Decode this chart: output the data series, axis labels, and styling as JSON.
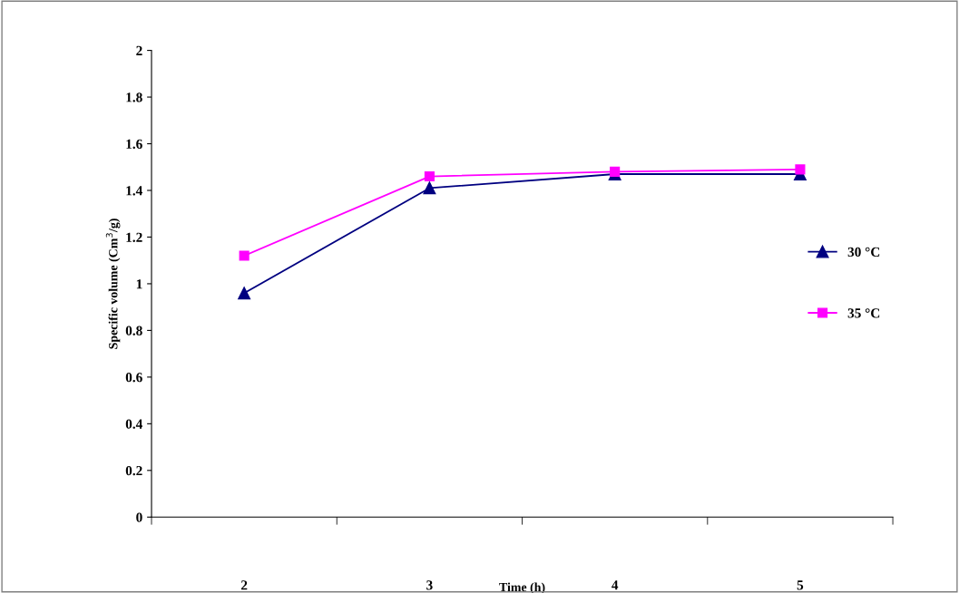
{
  "chart_data": {
    "type": "line",
    "xlabel": "Time (h)",
    "ylabel": "Specific volume (Cm$^{3}$/g)",
    "categories": [
      "2",
      "3",
      "4",
      "5"
    ],
    "series": [
      {
        "name": "30 °C",
        "color": "#000080",
        "marker": "triangle",
        "values": [
          0.96,
          1.41,
          1.47,
          1.47
        ]
      },
      {
        "name": "35 °C",
        "color": "#ff00ff",
        "marker": "square",
        "values": [
          1.12,
          1.46,
          1.48,
          1.49
        ]
      }
    ],
    "ylim": [
      0,
      2
    ],
    "yticks": [
      0,
      0.2,
      0.4,
      0.6,
      0.8,
      1,
      1.2,
      1.4,
      1.6,
      1.8,
      2
    ],
    "grid": false,
    "legend": "right",
    "line_style": "solid"
  }
}
